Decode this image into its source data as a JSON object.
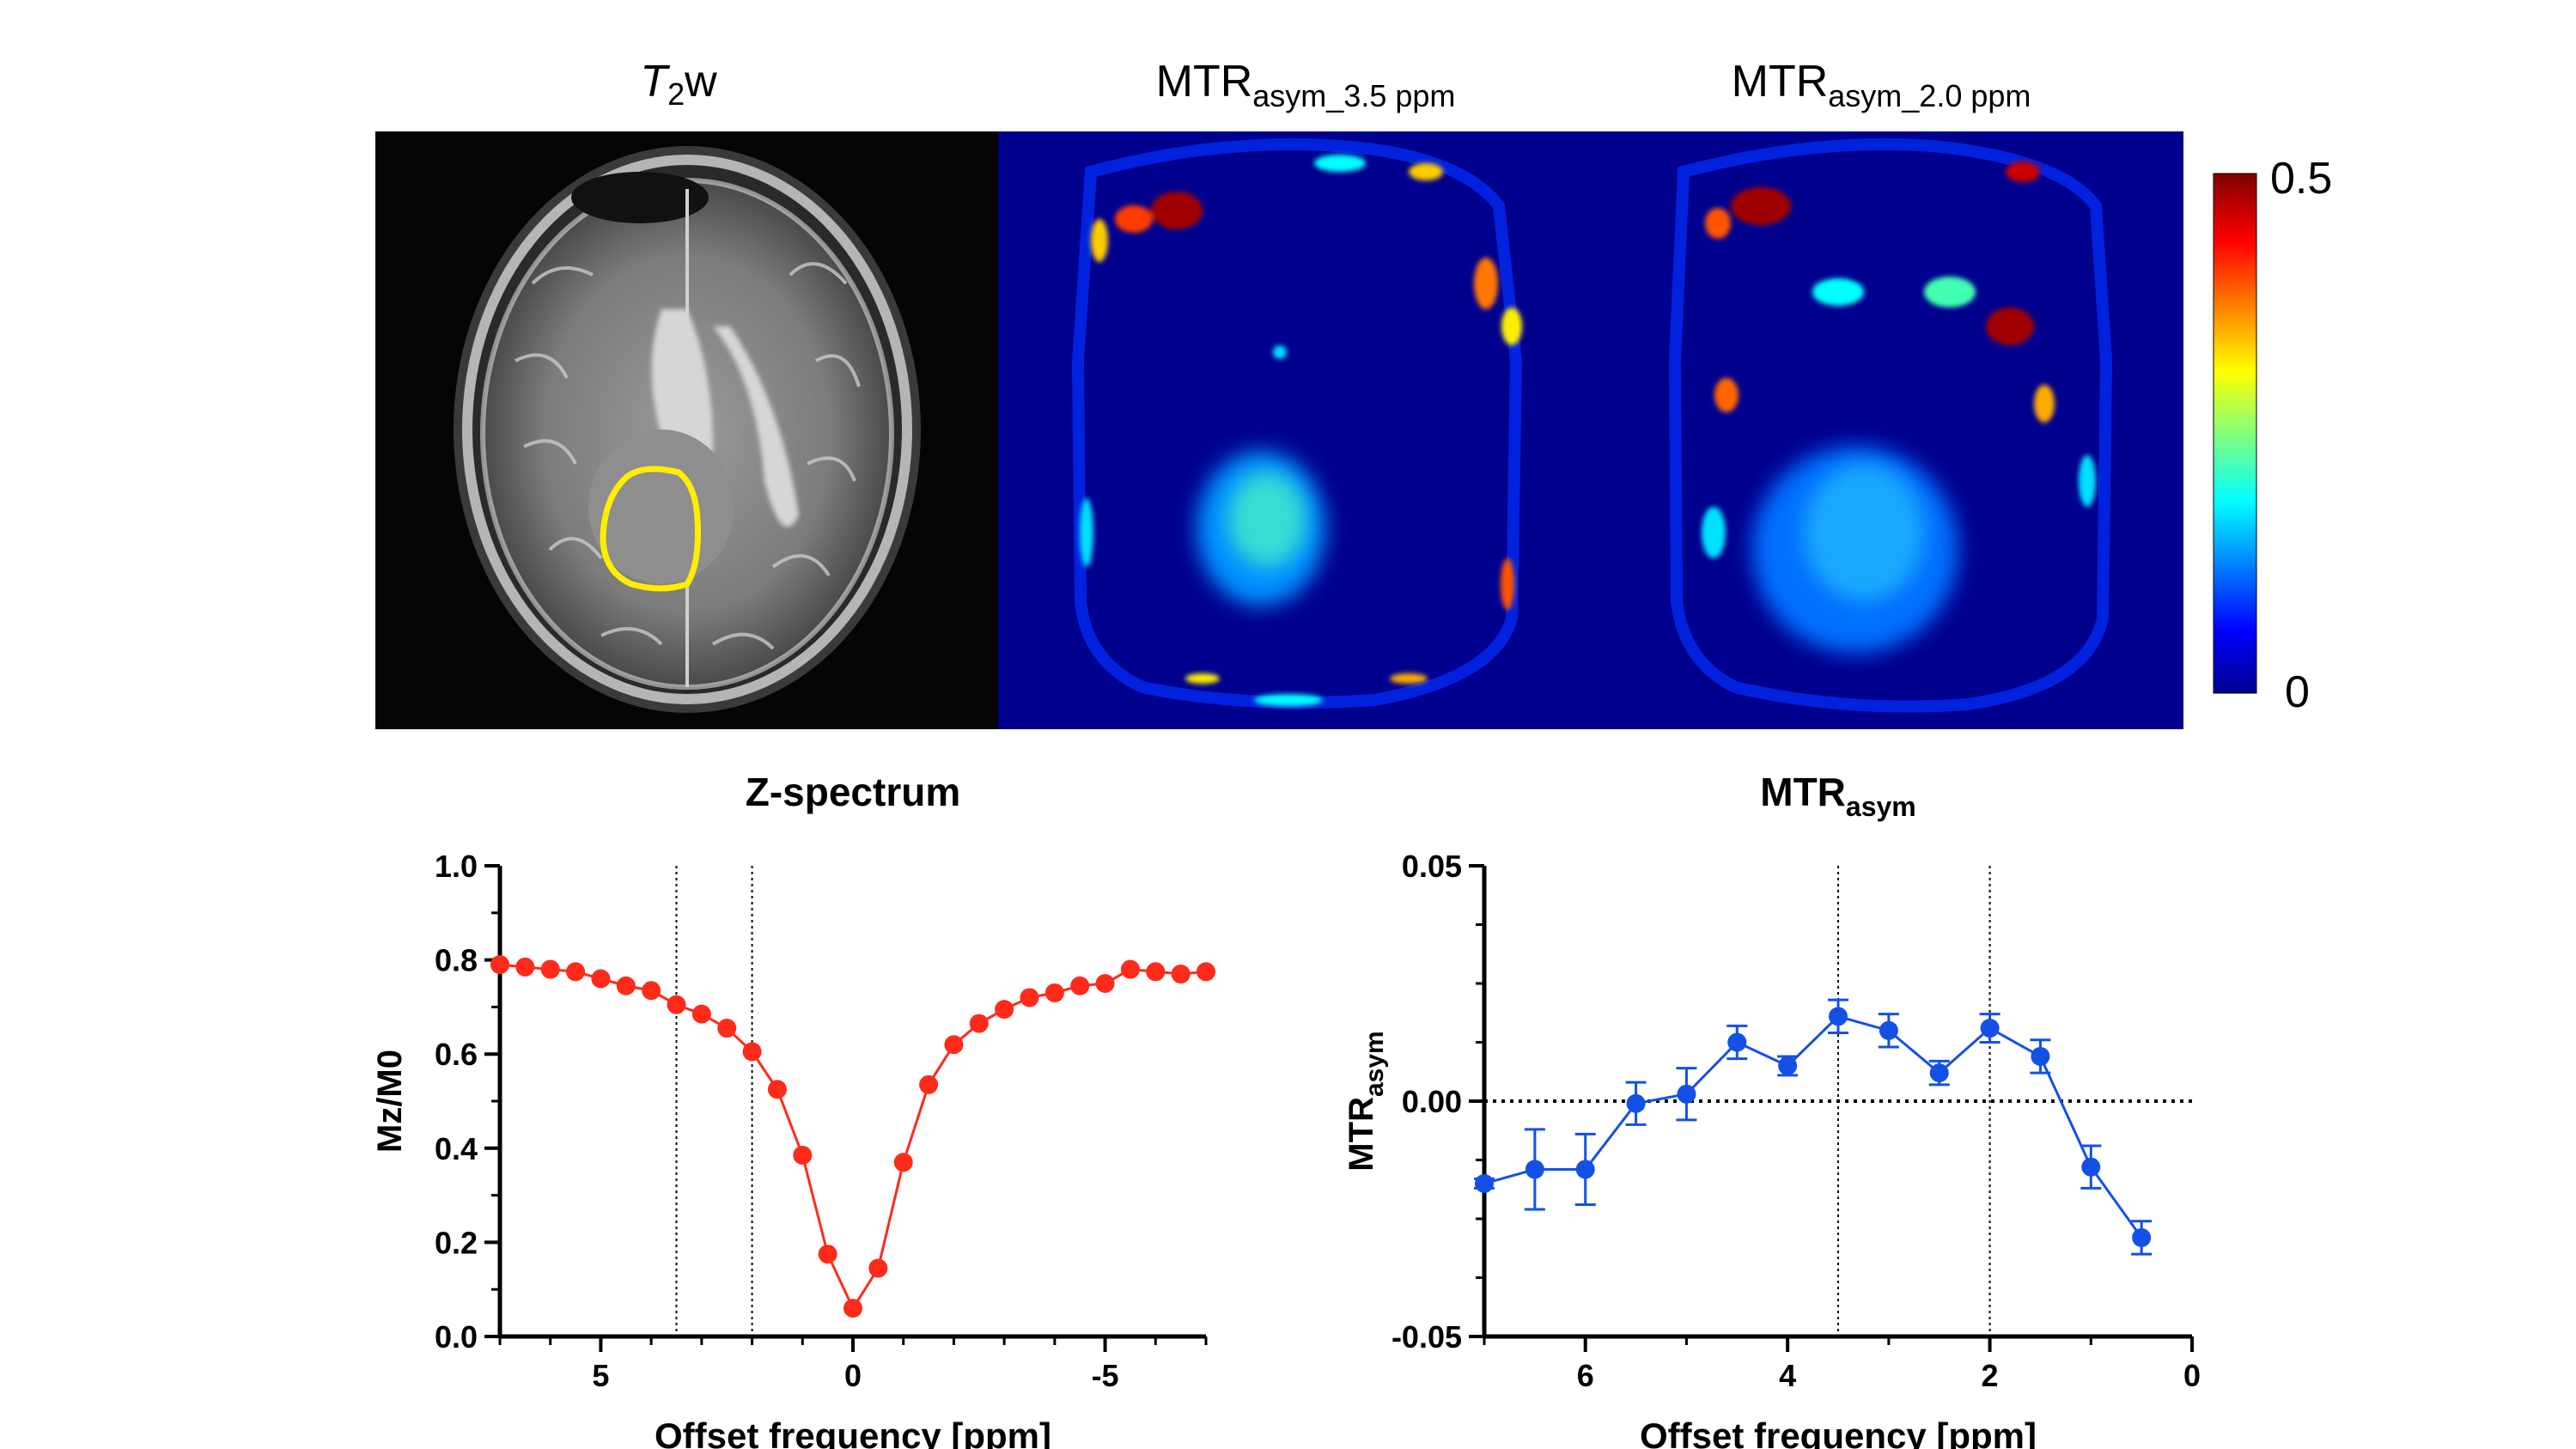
{
  "panels": {
    "t2w": {
      "title_italic": "T",
      "title_sub": "2",
      "title_rest": "w"
    },
    "mtr35": {
      "title_main": "MTR",
      "title_sub": "asym_3.5 ppm"
    },
    "mtr20": {
      "title_main": "MTR",
      "title_sub": "asym_2.0 ppm"
    }
  },
  "colorbar": {
    "max_label": "0.5",
    "min_label": "0",
    "colors": [
      "#00008f",
      "#0000ff",
      "#00ffff",
      "#ffff00",
      "#ff0000",
      "#800000"
    ]
  },
  "roi_color": "#ffee00",
  "chart_data": [
    {
      "type": "line",
      "title": "Z-spectrum",
      "xlabel": "Offset frequency [ppm]",
      "ylabel": "Mz/M0",
      "xlim": [
        7,
        -7
      ],
      "ylim": [
        0,
        1.0
      ],
      "xticks": [
        5,
        0,
        -5
      ],
      "xtick_labels": [
        "5",
        "0",
        "-5"
      ],
      "yticks": [
        0,
        0.2,
        0.4,
        0.6,
        0.8,
        1.0
      ],
      "ytick_labels": [
        "0.0",
        "0.2",
        "0.4",
        "0.6",
        "0.8",
        "1.0"
      ],
      "vlines": [
        3.5,
        2.0
      ],
      "color": "#ff2a1a",
      "x": [
        7,
        6.5,
        6,
        5.5,
        5,
        4.5,
        4,
        3.5,
        3,
        2.5,
        2,
        1.5,
        1,
        0.5,
        0,
        -0.5,
        -1,
        -1.5,
        -2,
        -2.5,
        -3,
        -3.5,
        -4,
        -4.5,
        -5,
        -5.5,
        -6,
        -6.5,
        -7
      ],
      "y": [
        0.79,
        0.785,
        0.78,
        0.775,
        0.76,
        0.745,
        0.735,
        0.705,
        0.685,
        0.655,
        0.605,
        0.525,
        0.385,
        0.175,
        0.06,
        0.145,
        0.37,
        0.535,
        0.62,
        0.665,
        0.695,
        0.72,
        0.73,
        0.745,
        0.75,
        0.78,
        0.775,
        0.77,
        0.775
      ]
    },
    {
      "type": "line",
      "title_main": "MTR",
      "title_sub": "asym",
      "xlabel": "Offset frequency [ppm]",
      "ylabel_main": "MTR",
      "ylabel_sub": "asym",
      "xlim": [
        7,
        0
      ],
      "ylim": [
        -0.05,
        0.05
      ],
      "xticks": [
        6,
        4,
        2,
        0
      ],
      "xtick_labels": [
        "6",
        "4",
        "2",
        "0"
      ],
      "yticks": [
        -0.05,
        0,
        0.05
      ],
      "ytick_labels": [
        "-0.05",
        "0.00",
        "0.05"
      ],
      "vlines": [
        3.5,
        2.0
      ],
      "hline": 0,
      "color": "#1450e6",
      "x": [
        7,
        6.5,
        6,
        5.5,
        5,
        4.5,
        4,
        3.5,
        3,
        2.5,
        2,
        1.5,
        1,
        0.5
      ],
      "y": [
        -0.0175,
        -0.0145,
        -0.0145,
        -0.0005,
        0.0015,
        0.0125,
        0.0075,
        0.018,
        0.015,
        0.006,
        0.0155,
        0.0095,
        -0.014,
        -0.029
      ],
      "err": [
        0.001,
        0.0085,
        0.0075,
        0.0045,
        0.0055,
        0.0035,
        0.002,
        0.0035,
        0.0035,
        0.0025,
        0.003,
        0.0035,
        0.0045,
        0.0035
      ]
    }
  ]
}
